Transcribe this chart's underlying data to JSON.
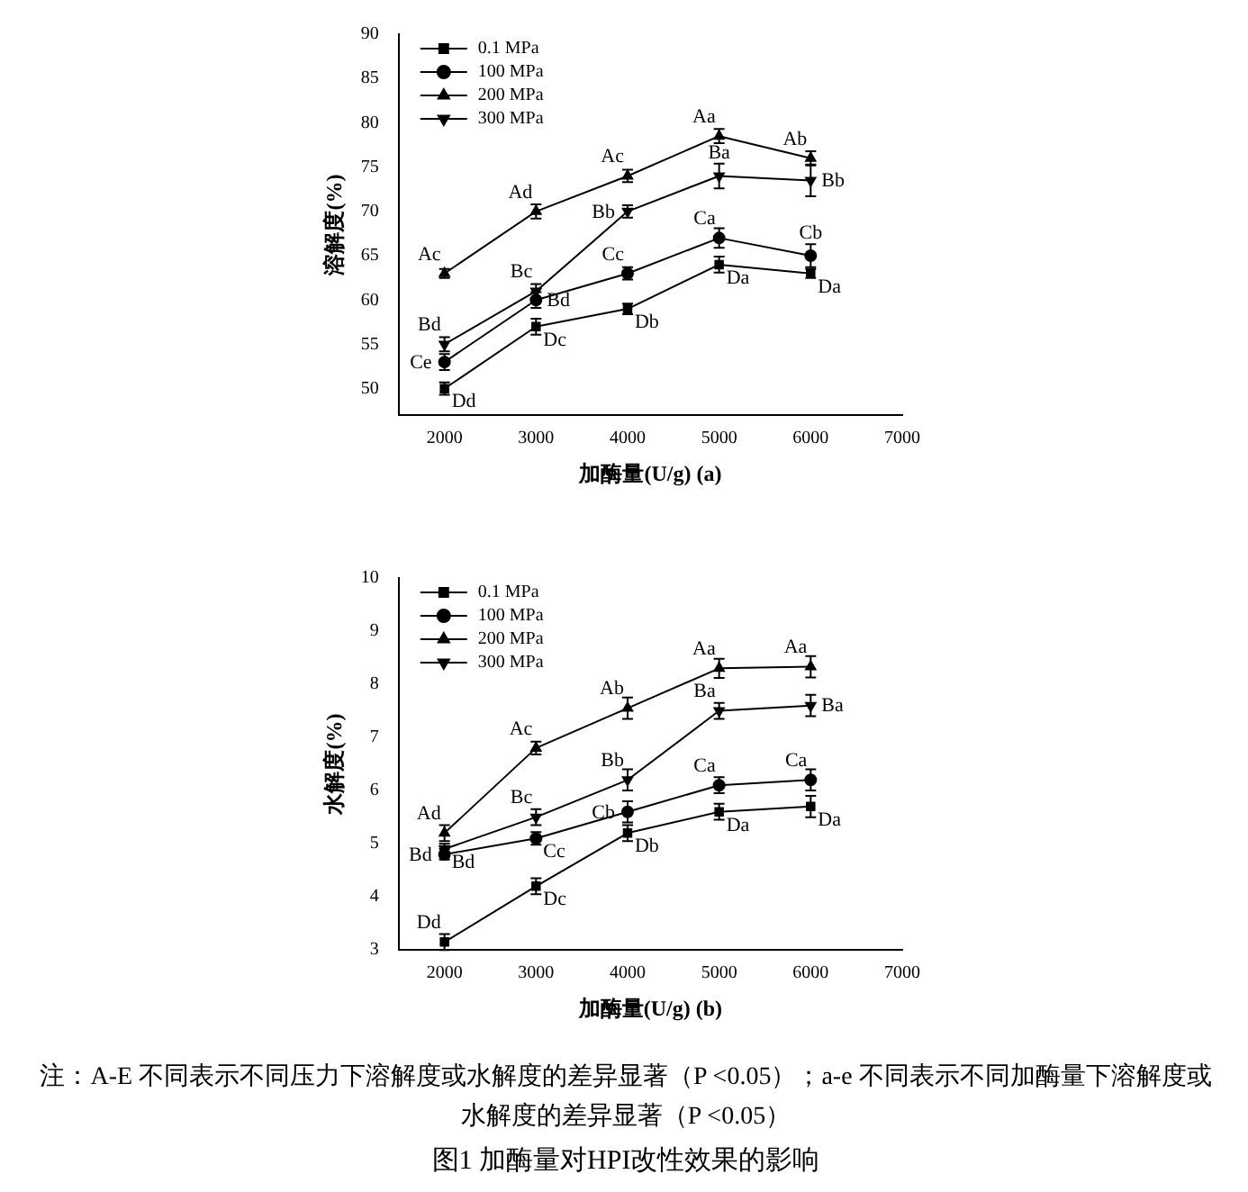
{
  "chart_data": [
    {
      "type": "line",
      "xlabel": "加酶量(U/g) (a)",
      "ylabel": "溶解度(%)",
      "x": [
        2000,
        3000,
        4000,
        5000,
        6000
      ],
      "xlim": [
        1500,
        7000
      ],
      "xticks": [
        2000,
        3000,
        4000,
        5000,
        6000,
        7000
      ],
      "ylim": [
        47,
        90
      ],
      "yticks": [
        50,
        55,
        60,
        65,
        70,
        75,
        80,
        85,
        90
      ],
      "grid": false,
      "legend": "top left",
      "line_style": "solid",
      "series": [
        {
          "name": "0.1 MPa",
          "color": "#000000",
          "marker": "square",
          "values": [
            50,
            57,
            59,
            64,
            63
          ],
          "errors": [
            0.7,
            0.9,
            0.6,
            0.9,
            0.5
          ]
        },
        {
          "name": "100 MPa",
          "color": "#000000",
          "marker": "circle",
          "values": [
            53,
            60,
            63,
            67,
            65
          ],
          "errors": [
            0.9,
            0.9,
            0.7,
            1.1,
            1.3
          ]
        },
        {
          "name": "200 MPa",
          "color": "#000000",
          "marker": "triangle",
          "values": [
            63,
            70,
            74,
            78.5,
            76
          ],
          "errors": [
            0.5,
            0.8,
            0.7,
            0.8,
            0.8
          ]
        },
        {
          "name": "300 MPa",
          "color": "#000000",
          "marker": "triangle-down",
          "values": [
            55,
            61,
            70,
            74,
            73.5
          ],
          "errors": [
            0.8,
            0.8,
            0.7,
            1.4,
            1.8
          ]
        }
      ],
      "annotations": [
        {
          "text": "Dd",
          "x": 2000,
          "y": 50
        },
        {
          "text": "Dc",
          "x": 3000,
          "y": 57
        },
        {
          "text": "Db",
          "x": 4000,
          "y": 59
        },
        {
          "text": "Da",
          "x": 5000,
          "y": 64
        },
        {
          "text": "Da",
          "x": 6000,
          "y": 63
        },
        {
          "text": "Ce",
          "x": 2000,
          "y": 53
        },
        {
          "text": "Bd",
          "x": 3000,
          "y": 60
        },
        {
          "text": "Cc",
          "x": 4000,
          "y": 63
        },
        {
          "text": "Ca",
          "x": 5000,
          "y": 67
        },
        {
          "text": "Cb",
          "x": 6000,
          "y": 65
        },
        {
          "text": "Ac",
          "x": 2000,
          "y": 63
        },
        {
          "text": "Ad",
          "x": 3000,
          "y": 70
        },
        {
          "text": "Ac",
          "x": 4000,
          "y": 74
        },
        {
          "text": "Aa",
          "x": 5000,
          "y": 78.5
        },
        {
          "text": "Ab",
          "x": 6000,
          "y": 76
        },
        {
          "text": "Bd",
          "x": 2000,
          "y": 55
        },
        {
          "text": "Bc",
          "x": 3000,
          "y": 61
        },
        {
          "text": "Bb",
          "x": 4000,
          "y": 70
        },
        {
          "text": "Ba",
          "x": 5000,
          "y": 74
        },
        {
          "text": "Bb",
          "x": 6000,
          "y": 73.5
        }
      ]
    },
    {
      "type": "line",
      "xlabel": "加酶量(U/g) (b)",
      "ylabel": "水解度(%)",
      "x": [
        2000,
        3000,
        4000,
        5000,
        6000
      ],
      "xlim": [
        1500,
        7000
      ],
      "xticks": [
        2000,
        3000,
        4000,
        5000,
        6000,
        7000
      ],
      "ylim": [
        3,
        10
      ],
      "yticks": [
        3,
        4,
        5,
        6,
        7,
        8,
        9,
        10
      ],
      "grid": false,
      "legend": "top left",
      "line_style": "solid",
      "series": [
        {
          "name": "0.1 MPa",
          "color": "#000000",
          "marker": "square",
          "values": [
            3.15,
            4.2,
            5.2,
            5.6,
            5.7
          ],
          "errors": [
            0.15,
            0.15,
            0.15,
            0.15,
            0.2
          ]
        },
        {
          "name": "100 MPa",
          "color": "#000000",
          "marker": "circle",
          "values": [
            4.8,
            5.1,
            5.6,
            6.1,
            6.2
          ],
          "errors": [
            0.1,
            0.12,
            0.2,
            0.15,
            0.2
          ]
        },
        {
          "name": "200 MPa",
          "color": "#000000",
          "marker": "triangle",
          "values": [
            5.2,
            6.8,
            7.55,
            8.3,
            8.33
          ],
          "errors": [
            0.15,
            0.12,
            0.2,
            0.18,
            0.2
          ]
        },
        {
          "name": "300 MPa",
          "color": "#000000",
          "marker": "triangle-down",
          "values": [
            4.9,
            5.5,
            6.2,
            7.5,
            7.6
          ],
          "errors": [
            0.1,
            0.15,
            0.2,
            0.15,
            0.2
          ]
        }
      ],
      "annotations": [
        {
          "text": "Dd",
          "x": 2000,
          "y": 3.15
        },
        {
          "text": "Dc",
          "x": 3000,
          "y": 4.2
        },
        {
          "text": "Db",
          "x": 4000,
          "y": 5.2
        },
        {
          "text": "Da",
          "x": 5000,
          "y": 5.6
        },
        {
          "text": "Da",
          "x": 6000,
          "y": 5.7
        },
        {
          "text": "Bd",
          "x": 2000,
          "y": 4.8
        },
        {
          "text": "Cc",
          "x": 3000,
          "y": 5.1
        },
        {
          "text": "Cb",
          "x": 4000,
          "y": 5.6
        },
        {
          "text": "Ca",
          "x": 5000,
          "y": 6.1
        },
        {
          "text": "Ca",
          "x": 6000,
          "y": 6.2
        },
        {
          "text": "Ad",
          "x": 2000,
          "y": 5.2
        },
        {
          "text": "Ac",
          "x": 3000,
          "y": 6.8
        },
        {
          "text": "Ab",
          "x": 4000,
          "y": 7.55
        },
        {
          "text": "Aa",
          "x": 5000,
          "y": 8.3
        },
        {
          "text": "Aa",
          "x": 6000,
          "y": 8.33
        },
        {
          "text": "Bd",
          "x": 2000,
          "y": 4.9
        },
        {
          "text": "Bc",
          "x": 3000,
          "y": 5.5
        },
        {
          "text": "Bb",
          "x": 4000,
          "y": 6.2
        },
        {
          "text": "Ba",
          "x": 5000,
          "y": 7.5
        },
        {
          "text": "Ba",
          "x": 6000,
          "y": 7.6
        },
        "注：A-E 不同表示不同压力下溶解度或水解度的差异显著（P <0.05）；a-e 不同表示不同加酶量下溶解度或水解度的差异显著（P <0.05）",
        "图1  加酶量对HPI改性效果的影响"
      ]
    }
  ]
}
